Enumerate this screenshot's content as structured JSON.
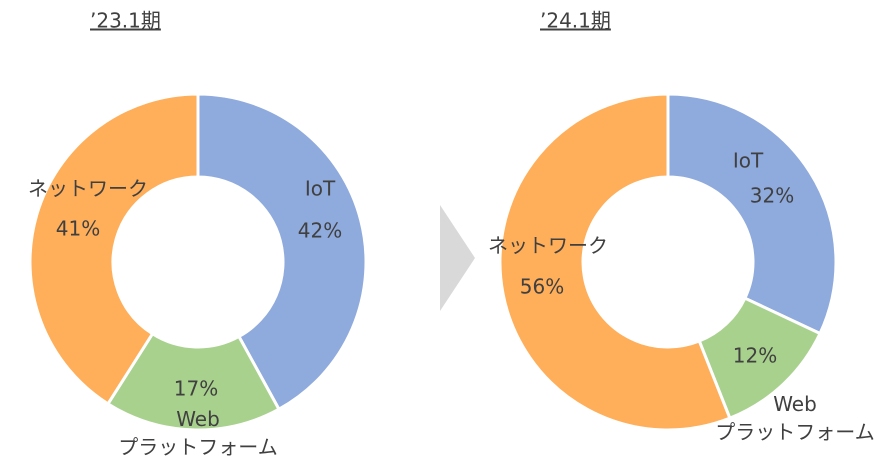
{
  "chart_data": [
    {
      "type": "donut",
      "title": "’23.1期",
      "categories": [
        "IoT",
        "Web\nプラットフォーム",
        "ネットワーク"
      ],
      "values": [
        42,
        17,
        41
      ],
      "value_labels": [
        "42%",
        "17%",
        "41%"
      ],
      "colors": [
        "#8faadc",
        "#a9d18e",
        "#ffae5a"
      ]
    },
    {
      "type": "donut",
      "title": "’24.1期",
      "categories": [
        "IoT",
        "Web\nプラットフォーム",
        "ネットワーク"
      ],
      "values": [
        32,
        12,
        56
      ],
      "value_labels": [
        "32%",
        "12%",
        "56%"
      ],
      "colors": [
        "#8faadc",
        "#a9d18e",
        "#ffae5a"
      ]
    }
  ]
}
